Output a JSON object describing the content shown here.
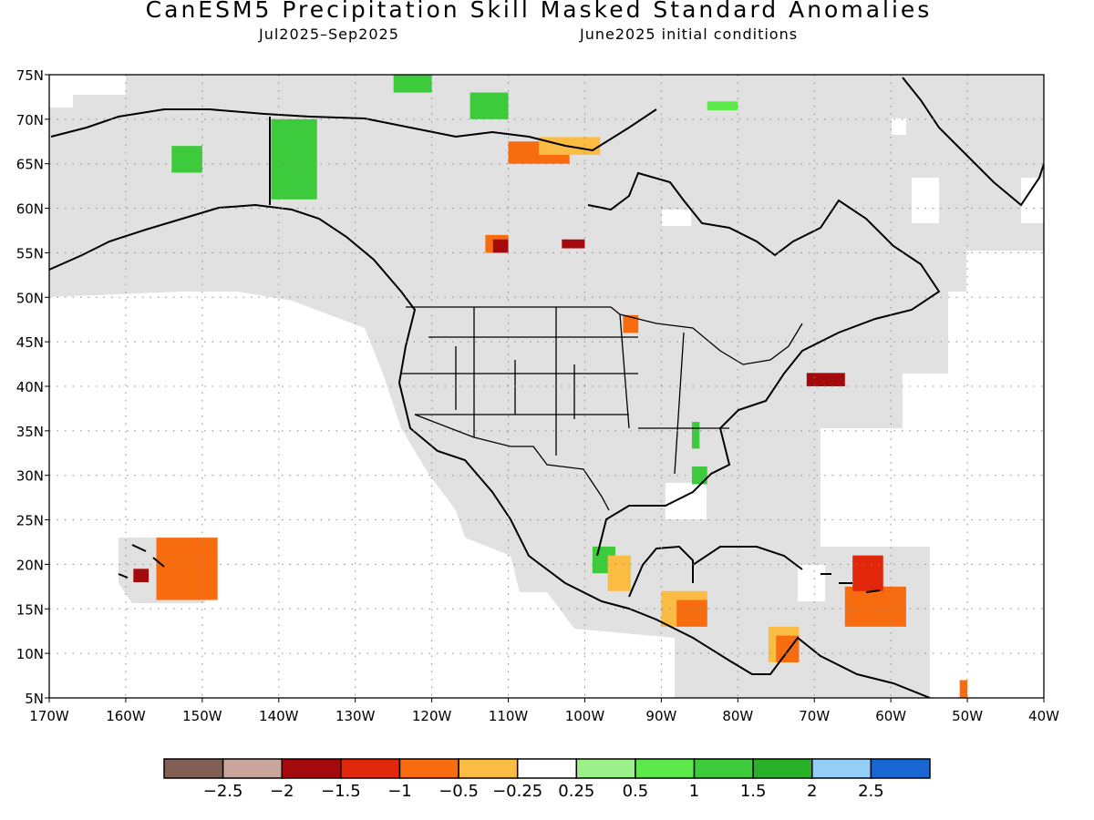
{
  "title": "CanESM5 Precipitation Skill Masked Standard Anomalies",
  "subtitle_left": "Jul2025–Sep2025",
  "subtitle_right": "June2025 initial conditions",
  "map": {
    "lon_range": [
      -170,
      -40
    ],
    "lat_range": [
      5,
      75
    ],
    "lat_labels": [
      "75N",
      "70N",
      "65N",
      "60N",
      "55N",
      "50N",
      "45N",
      "40N",
      "35N",
      "30N",
      "25N",
      "20N",
      "15N",
      "10N",
      "5N"
    ],
    "lon_labels": [
      "170W",
      "160W",
      "150W",
      "140W",
      "130W",
      "120W",
      "110W",
      "100W",
      "90W",
      "80W",
      "70W",
      "60W",
      "50W",
      "40W"
    ],
    "grid": "dotted",
    "mask_color": "#e1e1e1"
  },
  "colorbar": {
    "colors": [
      "#825f55",
      "#c9a59b",
      "#a40a0b",
      "#e1280a",
      "#f86c10",
      "#fbbc43",
      "#ffffff",
      "#9cf08a",
      "#5bea4a",
      "#3dcb3d",
      "#26b126",
      "#94cdf5",
      "#1967d2"
    ],
    "labels": [
      "−2.5",
      "−2",
      "−1.5",
      "−1",
      "−0.5",
      "−0.25",
      "0.25",
      "0.5",
      "1",
      "1.5",
      "2",
      "2.5"
    ]
  },
  "anomalies": [
    {
      "lon_range": [
        -156,
        -148
      ],
      "lat_range": [
        16,
        23
      ],
      "value": -1.0
    },
    {
      "lon_range": [
        -159,
        -157
      ],
      "lat_range": [
        18,
        19.5
      ],
      "value": -1.7
    },
    {
      "lon_range": [
        -141,
        -135
      ],
      "lat_range": [
        61,
        70
      ],
      "value": 1.2
    },
    {
      "lon_range": [
        -154,
        -150
      ],
      "lat_range": [
        64,
        67
      ],
      "value": 1.2
    },
    {
      "lon_range": [
        -125,
        -120
      ],
      "lat_range": [
        73,
        75
      ],
      "value": 1.2
    },
    {
      "lon_range": [
        -115,
        -110
      ],
      "lat_range": [
        70,
        73
      ],
      "value": 1.2
    },
    {
      "lon_range": [
        -84,
        -80
      ],
      "lat_range": [
        71,
        72
      ],
      "value": 0.6
    },
    {
      "lon_range": [
        -110,
        -102
      ],
      "lat_range": [
        65,
        67.5
      ],
      "value": -0.9
    },
    {
      "lon_range": [
        -106,
        -98
      ],
      "lat_range": [
        66,
        68
      ],
      "value": -0.4
    },
    {
      "lon_range": [
        -113,
        -110
      ],
      "lat_range": [
        55,
        57
      ],
      "value": -1.0
    },
    {
      "lon_range": [
        -112,
        -110
      ],
      "lat_range": [
        55,
        56.5
      ],
      "value": -1.7
    },
    {
      "lon_range": [
        -103,
        -100
      ],
      "lat_range": [
        55.5,
        56.5
      ],
      "value": -1.7
    },
    {
      "lon_range": [
        -95,
        -93
      ],
      "lat_range": [
        46,
        48
      ],
      "value": -1.0
    },
    {
      "lon_range": [
        -71,
        -66
      ],
      "lat_range": [
        40,
        41.5
      ],
      "value": -1.7
    },
    {
      "lon_range": [
        -99,
        -96
      ],
      "lat_range": [
        19,
        22
      ],
      "value": 1.2
    },
    {
      "lon_range": [
        -86,
        -84
      ],
      "lat_range": [
        29,
        31
      ],
      "value": 1.2
    },
    {
      "lon_range": [
        -86,
        -85
      ],
      "lat_range": [
        33,
        36
      ],
      "value": 1.0
    },
    {
      "lon_range": [
        -97,
        -94
      ],
      "lat_range": [
        17,
        21
      ],
      "value": -0.4
    },
    {
      "lon_range": [
        -90,
        -84
      ],
      "lat_range": [
        13,
        17
      ],
      "value": -0.4
    },
    {
      "lon_range": [
        -88,
        -84
      ],
      "lat_range": [
        13,
        16
      ],
      "value": -1.0
    },
    {
      "lon_range": [
        -66,
        -58
      ],
      "lat_range": [
        13,
        17.5
      ],
      "value": -1.0
    },
    {
      "lon_range": [
        -65,
        -61
      ],
      "lat_range": [
        17,
        21
      ],
      "value": -1.5
    },
    {
      "lon_range": [
        -76,
        -72
      ],
      "lat_range": [
        9,
        13
      ],
      "value": -0.4
    },
    {
      "lon_range": [
        -75,
        -72
      ],
      "lat_range": [
        9,
        12
      ],
      "value": -1.0
    },
    {
      "lon_range": [
        -51,
        -50
      ],
      "lat_range": [
        5,
        7
      ],
      "value": -1.0
    }
  ]
}
